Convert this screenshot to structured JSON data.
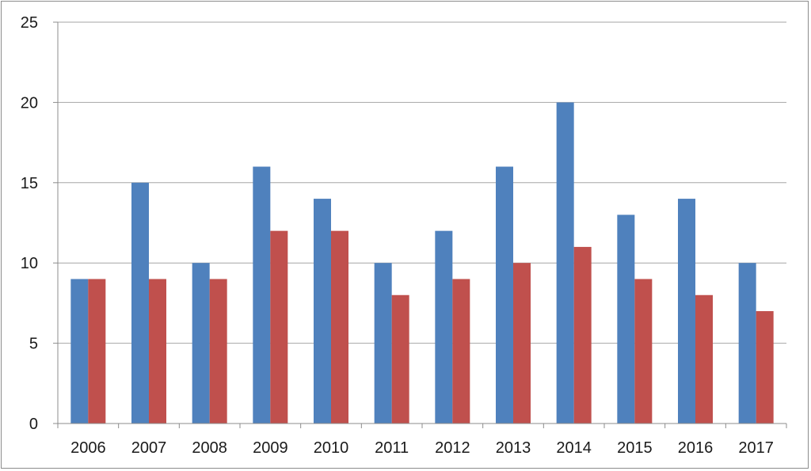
{
  "chart_data": {
    "type": "bar",
    "title": "",
    "xlabel": "",
    "ylabel": "",
    "categories": [
      "2006",
      "2007",
      "2008",
      "2009",
      "2010",
      "2011",
      "2012",
      "2013",
      "2014",
      "2015",
      "2016",
      "2017"
    ],
    "series": [
      {
        "color": "#4f81bd",
        "values": [
          9,
          15,
          10,
          16,
          14,
          10,
          12,
          16,
          20,
          13,
          14,
          10
        ]
      },
      {
        "color": "#c0504d",
        "values": [
          9,
          9,
          9,
          12,
          12,
          8,
          9,
          10,
          11,
          9,
          8,
          7
        ]
      }
    ],
    "ylim": [
      0,
      25
    ],
    "yticks": [
      "0",
      "5",
      "10",
      "15",
      "20",
      "25"
    ],
    "grid": true,
    "legend": "none"
  },
  "colors": {
    "gridline": "#a6a6a6",
    "axis": "#8c8c8c"
  }
}
